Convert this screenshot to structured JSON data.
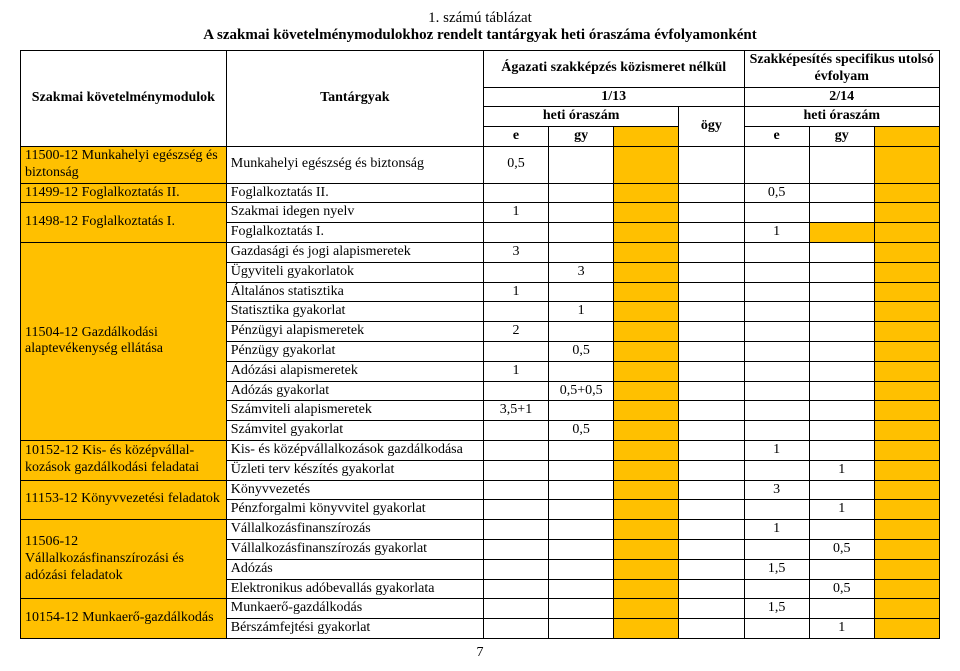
{
  "colors": {
    "highlight": "#ffc000",
    "border": "#000000",
    "bg": "#ffffff",
    "text": "#000000"
  },
  "fonts": {
    "family": "Times New Roman",
    "body_size_pt": 11,
    "title_size_pt": 12
  },
  "title": {
    "line1": "1. számú táblázat",
    "line2": "A szakmai követelménymodulokhoz rendelt tantárgyak heti óraszáma évfolyamonként"
  },
  "cols": [
    "mod",
    "sub",
    "e1",
    "gy1",
    "blank1",
    "ogy",
    "e2",
    "gy2",
    "blank2"
  ],
  "header": {
    "modulok": "Szakmai követelménymodulok",
    "tantargyak": "Tantárgyak",
    "agazati": "Ágazati szakképzés közismeret nélkül",
    "specifikus": "Szakképesítés specifikus utolsó évfolyam",
    "y113": "1/13",
    "y214": "2/14",
    "heti": "heti óraszám",
    "ogy": "ögy",
    "e": "e",
    "gy": "gy"
  },
  "modules": [
    {
      "label": "11500-12 Munkahelyi egészség és biztonság",
      "rows": 1
    },
    {
      "label": "11499-12 Foglalkoztatás II.",
      "rows": 1
    },
    {
      "label": "11498-12 Foglalkoztatás I.",
      "rows": 2
    },
    {
      "label": "11504-12 Gazdálkodási alaptevékenység ellátása",
      "rows": 10
    },
    {
      "label": "10152-12 Kis- és középvállal-kozások gazdálkodási feladatai",
      "rows": 2
    },
    {
      "label": "11153-12 Könyvvezetési feladatok",
      "rows": 2
    },
    {
      "label": "11506-12 Vállalkozásfinanszírozási és adózási feladatok",
      "rows": 4
    },
    {
      "label": "10154-12 Munkaerő-gazdálkodás",
      "rows": 2
    }
  ],
  "rows": [
    {
      "sub": "Munkahelyi egészség és biztonság",
      "e1": "0,5"
    },
    {
      "sub": "Foglalkoztatás II.",
      "e2": "0,5"
    },
    {
      "sub": "Szakmai idegen nyelv",
      "e1": "1"
    },
    {
      "sub": "Foglalkoztatás I.",
      "e2": "1",
      "gy2_hilite": true
    },
    {
      "sub": "Gazdasági és jogi alapismeretek",
      "e1": "3"
    },
    {
      "sub": "Ügyviteli gyakorlatok",
      "gy1": "3"
    },
    {
      "sub": "Általános statisztika",
      "e1": "1"
    },
    {
      "sub": "Statisztika gyakorlat",
      "gy1": "1"
    },
    {
      "sub": "Pénzügyi alapismeretek",
      "e1": "2"
    },
    {
      "sub": "Pénzügy gyakorlat",
      "gy1": "0,5"
    },
    {
      "sub": "Adózási alapismeretek",
      "e1": "1"
    },
    {
      "sub": "Adózás gyakorlat",
      "gy1": "0,5+0,5"
    },
    {
      "sub": "Számviteli alapismeretek",
      "e1": "3,5+1"
    },
    {
      "sub": "Számvitel gyakorlat",
      "gy1": "0,5"
    },
    {
      "sub": "Kis- és középvállalkozások gazdálkodása",
      "e2": "1"
    },
    {
      "sub": "Üzleti terv készítés gyakorlat",
      "gy2": "1"
    },
    {
      "sub": "Könyvvezetés",
      "e2": "3"
    },
    {
      "sub": "Pénzforgalmi könyvvitel gyakorlat",
      "gy2": "1"
    },
    {
      "sub": "Vállalkozásfinanszírozás",
      "e2": "1"
    },
    {
      "sub": "Vállalkozásfinanszírozás gyakorlat",
      "gy2": "0,5"
    },
    {
      "sub": "Adózás",
      "e2": "1,5"
    },
    {
      "sub": "Elektronikus adóbevallás gyakorlata",
      "gy2": "0,5"
    },
    {
      "sub": "Munkaerő-gazdálkodás",
      "e2": "1,5"
    },
    {
      "sub": "Bérszámfejtési gyakorlat",
      "gy2": "1"
    }
  ],
  "page_number": "7"
}
